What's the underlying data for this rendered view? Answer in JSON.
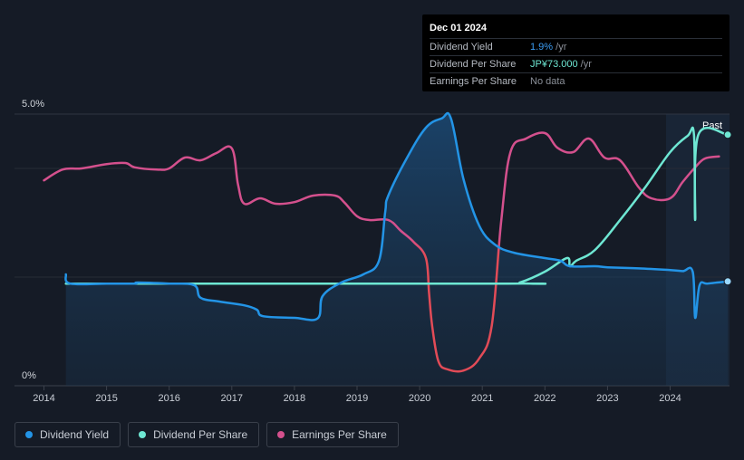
{
  "tooltip": {
    "date": "Dec 01 2024",
    "rows": [
      {
        "label": "Dividend Yield",
        "value": "1.9%",
        "suffix": " /yr"
      },
      {
        "label": "Dividend Per Share",
        "value": "JP¥73.000",
        "suffix": " /yr"
      },
      {
        "label": "Earnings Per Share",
        "value": "No data",
        "suffix": ""
      }
    ]
  },
  "legend": [
    {
      "label": "Dividend Yield",
      "color": "#2394e6"
    },
    {
      "label": "Dividend Per Share",
      "color": "#6ee7d3"
    },
    {
      "label": "Earnings Per Share",
      "color": "#d4508d"
    }
  ],
  "chart_data": {
    "type": "line",
    "y_axis_labels": [
      "5.0%",
      "0%"
    ],
    "ylim": [
      0,
      5.0
    ],
    "xlim": [
      2013.6,
      2024.92
    ],
    "x_ticks": [
      2014,
      2015,
      2016,
      2017,
      2018,
      2019,
      2020,
      2021,
      2022,
      2023,
      2024
    ],
    "past_label": "Past",
    "past_start": 2023.92,
    "series": [
      {
        "name": "Dividend Yield",
        "unit": "%",
        "color": "#2394e6",
        "points": [
          [
            2014.35,
            2.05
          ],
          [
            2014.42,
            1.88
          ],
          [
            2015.0,
            1.88
          ],
          [
            2015.45,
            1.88
          ],
          [
            2015.5,
            1.9
          ],
          [
            2016.0,
            1.88
          ],
          [
            2016.4,
            1.85
          ],
          [
            2016.5,
            1.62
          ],
          [
            2016.8,
            1.55
          ],
          [
            2017.2,
            1.48
          ],
          [
            2017.4,
            1.4
          ],
          [
            2017.5,
            1.28
          ],
          [
            2018.0,
            1.25
          ],
          [
            2018.37,
            1.24
          ],
          [
            2018.45,
            1.65
          ],
          [
            2018.75,
            1.9
          ],
          [
            2019.1,
            2.05
          ],
          [
            2019.35,
            2.3
          ],
          [
            2019.45,
            3.2
          ],
          [
            2019.5,
            3.5
          ],
          [
            2019.8,
            4.2
          ],
          [
            2020.1,
            4.75
          ],
          [
            2020.35,
            4.92
          ],
          [
            2020.5,
            4.92
          ],
          [
            2020.7,
            3.8
          ],
          [
            2020.95,
            2.95
          ],
          [
            2021.2,
            2.6
          ],
          [
            2021.5,
            2.45
          ],
          [
            2022.0,
            2.35
          ],
          [
            2022.25,
            2.3
          ],
          [
            2022.4,
            2.2
          ],
          [
            2022.8,
            2.2
          ],
          [
            2023.0,
            2.18
          ],
          [
            2023.5,
            2.16
          ],
          [
            2024.0,
            2.13
          ],
          [
            2024.2,
            2.11
          ],
          [
            2024.36,
            2.1
          ],
          [
            2024.4,
            1.25
          ],
          [
            2024.47,
            1.85
          ],
          [
            2024.6,
            1.88
          ],
          [
            2024.92,
            1.92
          ]
        ]
      },
      {
        "name": "Dividend Per Share",
        "unit": "JP¥",
        "color": "#6ee7d3",
        "points": [
          [
            2014.35,
            1.88
          ],
          [
            2021.4,
            1.88
          ],
          [
            2021.6,
            1.9
          ],
          [
            2022.0,
            2.1
          ],
          [
            2022.35,
            2.35
          ],
          [
            2022.4,
            2.2
          ],
          [
            2022.5,
            2.3
          ],
          [
            2022.8,
            2.5
          ],
          [
            2023.2,
            3.05
          ],
          [
            2023.6,
            3.65
          ],
          [
            2024.0,
            4.3
          ],
          [
            2024.28,
            4.6
          ],
          [
            2024.38,
            4.62
          ],
          [
            2024.4,
            3.05
          ],
          [
            2024.45,
            4.62
          ],
          [
            2024.92,
            4.62
          ]
        ]
      },
      {
        "name": "Earnings Per Share",
        "unit": "JP¥",
        "color": "#d4508d",
        "points": [
          [
            2014.0,
            3.78
          ],
          [
            2014.3,
            3.98
          ],
          [
            2014.6,
            4.0
          ],
          [
            2015.0,
            4.08
          ],
          [
            2015.3,
            4.1
          ],
          [
            2015.45,
            4.02
          ],
          [
            2015.8,
            3.98
          ],
          [
            2016.0,
            4.0
          ],
          [
            2016.25,
            4.2
          ],
          [
            2016.5,
            4.15
          ],
          [
            2016.75,
            4.28
          ],
          [
            2017.0,
            4.37
          ],
          [
            2017.1,
            3.7
          ],
          [
            2017.2,
            3.35
          ],
          [
            2017.45,
            3.45
          ],
          [
            2017.7,
            3.35
          ],
          [
            2018.0,
            3.38
          ],
          [
            2018.3,
            3.5
          ],
          [
            2018.65,
            3.5
          ],
          [
            2018.8,
            3.37
          ],
          [
            2019.0,
            3.12
          ],
          [
            2019.2,
            3.05
          ],
          [
            2019.5,
            3.05
          ],
          [
            2019.7,
            2.85
          ],
          [
            2019.9,
            2.65
          ],
          [
            2020.1,
            2.35
          ],
          [
            2020.15,
            1.7
          ],
          [
            2020.2,
            1.1
          ],
          [
            2020.3,
            0.45
          ],
          [
            2020.45,
            0.3
          ],
          [
            2020.7,
            0.28
          ],
          [
            2020.95,
            0.5
          ],
          [
            2021.15,
            1.1
          ],
          [
            2021.3,
            3.0
          ],
          [
            2021.45,
            4.3
          ],
          [
            2021.7,
            4.55
          ],
          [
            2022.0,
            4.65
          ],
          [
            2022.2,
            4.38
          ],
          [
            2022.45,
            4.3
          ],
          [
            2022.7,
            4.55
          ],
          [
            2022.95,
            4.2
          ],
          [
            2023.2,
            4.15
          ],
          [
            2023.5,
            3.65
          ],
          [
            2023.7,
            3.45
          ],
          [
            2024.0,
            3.45
          ],
          [
            2024.2,
            3.75
          ],
          [
            2024.4,
            4.02
          ],
          [
            2024.55,
            4.18
          ],
          [
            2024.78,
            4.22
          ]
        ]
      }
    ]
  }
}
